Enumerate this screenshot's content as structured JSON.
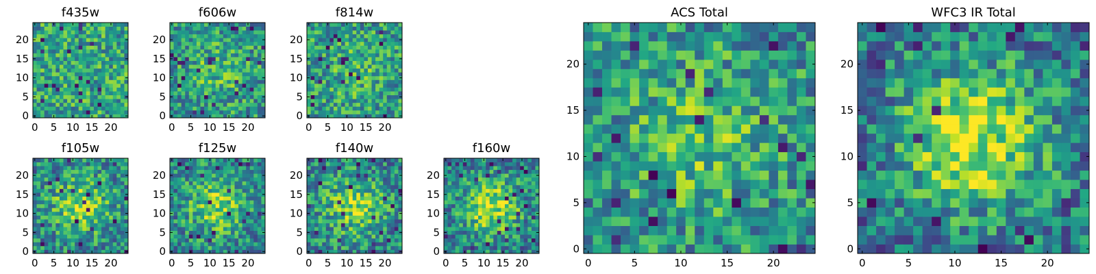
{
  "chart_data": [
    {
      "type": "heatmap",
      "title": "f435w",
      "colormap": "viridis",
      "seed": 11,
      "peak": 0.0,
      "xticks": [
        "0",
        "5",
        "10",
        "15",
        "20"
      ],
      "yticks": [
        "0",
        "5",
        "10",
        "15",
        "20"
      ],
      "xlim": [
        0,
        24
      ],
      "ylim": [
        0,
        24
      ]
    },
    {
      "type": "heatmap",
      "title": "f606w",
      "colormap": "viridis",
      "seed": 23,
      "peak": 0.15,
      "xticks": [
        "0",
        "5",
        "10",
        "15",
        "20"
      ],
      "yticks": [
        "0",
        "5",
        "10",
        "15",
        "20"
      ],
      "xlim": [
        0,
        24
      ],
      "ylim": [
        0,
        24
      ]
    },
    {
      "type": "heatmap",
      "title": "f814w",
      "colormap": "viridis",
      "seed": 37,
      "peak": 0.1,
      "xticks": [
        "0",
        "5",
        "10",
        "15",
        "20"
      ],
      "yticks": [
        "0",
        "5",
        "10",
        "15",
        "20"
      ],
      "xlim": [
        0,
        24
      ],
      "ylim": [
        0,
        24
      ]
    },
    {
      "type": "heatmap",
      "title": "f105w",
      "colormap": "viridis",
      "seed": 41,
      "peak": 0.35,
      "xticks": [
        "0",
        "5",
        "10",
        "15",
        "20"
      ],
      "yticks": [
        "0",
        "5",
        "10",
        "15",
        "20"
      ],
      "xlim": [
        0,
        24
      ],
      "ylim": [
        0,
        24
      ]
    },
    {
      "type": "heatmap",
      "title": "f125w",
      "colormap": "viridis",
      "seed": 53,
      "peak": 0.35,
      "xticks": [
        "0",
        "5",
        "10",
        "15",
        "20"
      ],
      "yticks": [
        "0",
        "5",
        "10",
        "15",
        "20"
      ],
      "xlim": [
        0,
        24
      ],
      "ylim": [
        0,
        24
      ]
    },
    {
      "type": "heatmap",
      "title": "f140w",
      "colormap": "viridis",
      "seed": 67,
      "peak": 0.35,
      "xticks": [
        "0",
        "5",
        "10",
        "15",
        "20"
      ],
      "yticks": [
        "0",
        "5",
        "10",
        "15",
        "20"
      ],
      "xlim": [
        0,
        24
      ],
      "ylim": [
        0,
        24
      ]
    },
    {
      "type": "heatmap",
      "title": "f160w",
      "colormap": "viridis",
      "seed": 71,
      "peak": 0.45,
      "xticks": [
        "0",
        "5",
        "10",
        "15",
        "20"
      ],
      "yticks": [
        "0",
        "5",
        "10",
        "15",
        "20"
      ],
      "xlim": [
        0,
        24
      ],
      "ylim": [
        0,
        24
      ]
    },
    {
      "type": "heatmap",
      "title": "ACS Total",
      "colormap": "viridis",
      "seed": 83,
      "peak": 0.2,
      "xticks": [
        "0",
        "5",
        "10",
        "15",
        "20"
      ],
      "yticks": [
        "0",
        "5",
        "10",
        "15",
        "20"
      ],
      "xlim": [
        0,
        24
      ],
      "ylim": [
        0,
        24
      ]
    },
    {
      "type": "heatmap",
      "title": "WFC3 IR Total",
      "colormap": "viridis",
      "seed": 97,
      "peak": 0.55,
      "xticks": [
        "0",
        "5",
        "10",
        "15",
        "20"
      ],
      "yticks": [
        "0",
        "5",
        "10",
        "15",
        "20"
      ],
      "xlim": [
        0,
        24
      ],
      "ylim": [
        0,
        24
      ]
    }
  ]
}
